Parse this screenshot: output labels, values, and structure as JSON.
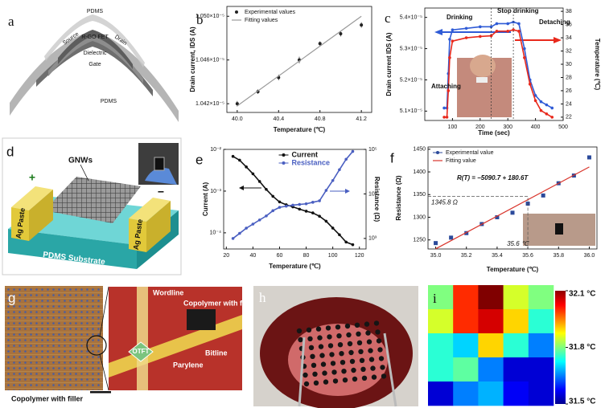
{
  "panels": {
    "a": {
      "label": "a",
      "layers": [
        "PDMS",
        "Source",
        "R-GO FET",
        "Drain",
        "Dielectric",
        "Gate",
        "PDMS"
      ]
    },
    "d": {
      "label": "d",
      "texts": [
        "GNWs",
        "Ag Paste",
        "+",
        "Ag Paste",
        "−",
        "PDMS Substrate"
      ]
    },
    "g": {
      "label": "g",
      "texts": [
        "Wordline",
        "Copolymer with filler",
        "OTFT",
        "Parylene",
        "Bitline",
        "Copolymer with filler"
      ]
    },
    "h": {
      "label": "h"
    }
  },
  "chart_data": [
    {
      "type": "scatter",
      "panel": "b",
      "x_label": "Temperature (℃)",
      "y_label": "Drain current, IDS (A)",
      "xlim": [
        39.9,
        41.3
      ],
      "xticks": [
        {
          "value": 40,
          "label": "40.0"
        },
        40.4,
        40.8,
        41.2
      ],
      "ylim": [
        1.0412e-05,
        1.0509e-05
      ],
      "yticks": [
        {
          "value": 1.042e-05,
          "label": "1.042×10⁻⁵"
        },
        {
          "value": 1.046e-05,
          "label": "1.046×10⁻⁵"
        },
        {
          "value": 1.05e-05,
          "label": "1.050×10⁻⁵"
        }
      ],
      "legend": "upper left",
      "series": [
        {
          "name": "Experimental values",
          "color": "#222222",
          "style": "points",
          "x": [
            40.0,
            40.2,
            40.4,
            40.6,
            40.8,
            41.0,
            41.2
          ],
          "values": [
            1.042e-05,
            1.0431e-05,
            1.0444e-05,
            1.046e-05,
            1.0475e-05,
            1.0484e-05,
            1.0492e-05
          ],
          "errors": [
            2.5e-09,
            2e-09,
            2.5e-09,
            3e-09,
            2e-09,
            2.5e-09,
            2.5e-09
          ]
        },
        {
          "name": "Fitting values",
          "color": "#999999",
          "style": "line",
          "x": [
            40.0,
            41.2
          ],
          "values": [
            1.0418e-05,
            1.05e-05
          ]
        }
      ]
    },
    {
      "type": "line",
      "panel": "c",
      "x_label": "Time (sec)",
      "y_label": "Drain current IDS (A)",
      "y2_label": "Temperature (℃)",
      "xlim": [
        0,
        500
      ],
      "xticks": [
        100,
        200,
        300,
        400,
        500
      ],
      "ylim": [
        5.07e-05,
        5.43e-05
      ],
      "yticks": [
        {
          "value": 5.1e-05,
          "label": "5.1×10⁻⁵"
        },
        {
          "value": 5.2e-05,
          "label": "5.2×10⁻⁵"
        },
        {
          "value": 5.3e-05,
          "label": "5.3×10⁻⁵"
        },
        {
          "value": 5.4e-05,
          "label": "5.4×10⁻⁵"
        }
      ],
      "y2lim": [
        21.5,
        38.5
      ],
      "y2ticks": [
        22,
        24,
        26,
        28,
        30,
        32,
        34,
        36,
        38
      ],
      "annotations": [
        {
          "text": "Attaching"
        },
        {
          "text": "Drinking",
          "x": 240
        },
        {
          "text": "Stop drinking",
          "x": 320
        },
        {
          "text": "Detaching"
        }
      ],
      "series": [
        {
          "color": "#2f5bd6",
          "style": "line+markers",
          "x": [
            70,
            80,
            85,
            90,
            100,
            150,
            200,
            240,
            260,
            300,
            320,
            340,
            360,
            380,
            400,
            420,
            440,
            460
          ],
          "values": [
            5.11e-05,
            5.11e-05,
            5.22e-05,
            5.33e-05,
            5.36e-05,
            5.365e-05,
            5.37e-05,
            5.37e-05,
            5.38e-05,
            5.38e-05,
            5.385e-05,
            5.38e-05,
            5.3e-05,
            5.2e-05,
            5.15e-05,
            5.13e-05,
            5.12e-05,
            5.11e-05
          ]
        },
        {
          "color": "#e8291c",
          "style": "line+markers",
          "axis": "y2",
          "x": [
            70,
            80,
            85,
            90,
            100,
            150,
            200,
            240,
            260,
            300,
            320,
            340,
            360,
            380,
            400,
            420,
            440,
            460
          ],
          "values": [
            22,
            22,
            26,
            31,
            33.5,
            34,
            34.2,
            34.3,
            35,
            35,
            35.2,
            35,
            31,
            27,
            24.5,
            23,
            22.5,
            22
          ]
        }
      ]
    },
    {
      "type": "line",
      "panel": "e",
      "x_label": "Temperature (℃)",
      "y_label": "Current (A)",
      "y2_label": "Resistance (Ω)",
      "xlim": [
        18,
        125
      ],
      "xticks": [
        20,
        40,
        60,
        80,
        100,
        120
      ],
      "ylog": true,
      "ylim": [
        4.1e-05,
        0.01
      ],
      "yticks": [
        {
          "value": 0.0001,
          "label": "10⁻⁴"
        },
        {
          "value": 0.001,
          "label": "10⁻³"
        },
        {
          "value": 0.01,
          "label": "10⁻²"
        }
      ],
      "y2log": true,
      "y2lim": [
        580,
        100000
      ],
      "y2ticks": [
        {
          "value": 1000,
          "label": "10³"
        },
        {
          "value": 10000,
          "label": "10⁴"
        },
        {
          "value": 100000,
          "label": "10⁵"
        }
      ],
      "legend": "upper center",
      "series": [
        {
          "name": "Current",
          "color": "#111111",
          "style": "line+markers",
          "x": [
            25,
            30,
            35,
            40,
            45,
            50,
            55,
            60,
            65,
            70,
            75,
            80,
            85,
            90,
            95,
            100,
            105,
            110,
            115
          ],
          "values": [
            0.0068,
            0.0055,
            0.0038,
            0.0026,
            0.0017,
            0.0011,
            0.00075,
            0.00055,
            0.00047,
            0.00042,
            0.00037,
            0.00033,
            0.0003,
            0.00025,
            0.00019,
            0.00013,
            9e-05,
            6e-05,
            5.2e-05
          ]
        },
        {
          "name": "Resistance",
          "color": "#4a5fc1",
          "style": "line+markers",
          "axis": "y2",
          "x": [
            25,
            30,
            35,
            40,
            45,
            50,
            55,
            60,
            65,
            70,
            75,
            80,
            85,
            90,
            95,
            100,
            105,
            110,
            115
          ],
          "values": [
            1000,
            1300,
            1700,
            2100,
            2600,
            3200,
            4200,
            5000,
            5300,
            5600,
            5800,
            6000,
            6500,
            7000,
            12000,
            20000,
            35000,
            60000,
            90000
          ]
        }
      ]
    },
    {
      "type": "scatter",
      "panel": "f",
      "x_label": "Temperature (℃)",
      "y_label": "Resistance (Ω)",
      "xlim": [
        34.95,
        36.05
      ],
      "xticks": [
        {
          "value": 35,
          "label": "35.0"
        },
        35.2,
        35.4,
        35.6,
        35.8,
        {
          "value": 36,
          "label": "36.0"
        }
      ],
      "ylim": [
        1230,
        1455
      ],
      "yticks": [
        1250,
        1300,
        1350,
        1400,
        1450
      ],
      "legend": "upper left",
      "annotations": [
        {
          "text": "R(T) = −5090.7 + 180.6T"
        }
      ],
      "guide": {
        "x": 35.6,
        "y": 1345.8,
        "x_label": "35.6 ℃",
        "y_label": "1345.8 Ω"
      },
      "series": [
        {
          "name": "Experimental value",
          "color": "#2b4a9b",
          "style": "squares",
          "x": [
            35.0,
            35.1,
            35.2,
            35.3,
            35.4,
            35.5,
            35.6,
            35.7,
            35.8,
            35.9,
            36.0
          ],
          "values": [
            1243,
            1255,
            1265,
            1285,
            1300,
            1310,
            1330,
            1348,
            1375,
            1392,
            1432
          ]
        },
        {
          "name": "Fitting value",
          "color": "#d9342b",
          "style": "line",
          "x": [
            35.0,
            36.0
          ],
          "values": [
            1230.3,
            1410.9
          ]
        }
      ]
    },
    {
      "type": "heatmap",
      "panel": "i",
      "clim": [
        31.5,
        32.1
      ],
      "cticks": [
        {
          "value": 32.1,
          "label": "32.1 °C"
        },
        {
          "value": 31.8,
          "label": "31.8 °C"
        },
        {
          "value": 31.5,
          "label": "31.5 °C"
        }
      ],
      "values": [
        [
          31.8,
          32.0,
          32.1,
          31.85,
          31.8
        ],
        [
          31.85,
          32.0,
          32.05,
          31.9,
          31.75
        ],
        [
          31.75,
          31.7,
          31.9,
          31.75,
          31.65
        ],
        [
          31.75,
          31.78,
          31.65,
          31.55,
          31.55
        ],
        [
          31.55,
          31.65,
          31.68,
          31.57,
          31.55
        ]
      ]
    }
  ]
}
